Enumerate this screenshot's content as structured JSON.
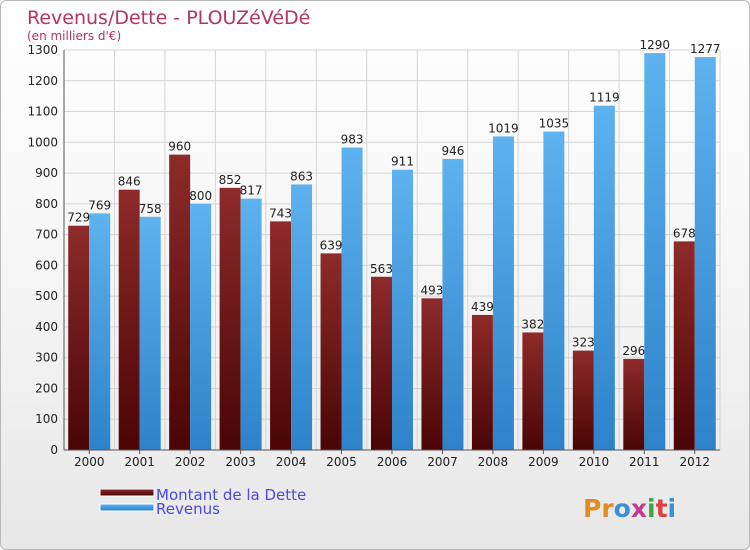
{
  "chart_data": {
    "type": "bar",
    "title": "Revenus/Dette - PLOUZéVéDé",
    "subtitle": "(en milliers d'€)",
    "categories": [
      "2000",
      "2001",
      "2002",
      "2003",
      "2004",
      "2005",
      "2006",
      "2007",
      "2008",
      "2009",
      "2010",
      "2011",
      "2012"
    ],
    "series": [
      {
        "name": "Montant de la Dette",
        "color": "#7a1a1a",
        "values": [
          729,
          846,
          960,
          852,
          743,
          639,
          563,
          493,
          439,
          382,
          323,
          296,
          678
        ]
      },
      {
        "name": "Revenus",
        "color": "#4aa3e6",
        "values": [
          769,
          758,
          800,
          817,
          863,
          983,
          911,
          946,
          1019,
          1035,
          1119,
          1290,
          1277
        ]
      }
    ],
    "ylim": [
      0,
      1300
    ],
    "yticks": [
      0,
      100,
      200,
      300,
      400,
      500,
      600,
      700,
      800,
      900,
      1000,
      1100,
      1200,
      1300
    ],
    "grid": true,
    "legend_placement": "bottom-left"
  },
  "branding": {
    "logo_text": "Proxiti"
  }
}
